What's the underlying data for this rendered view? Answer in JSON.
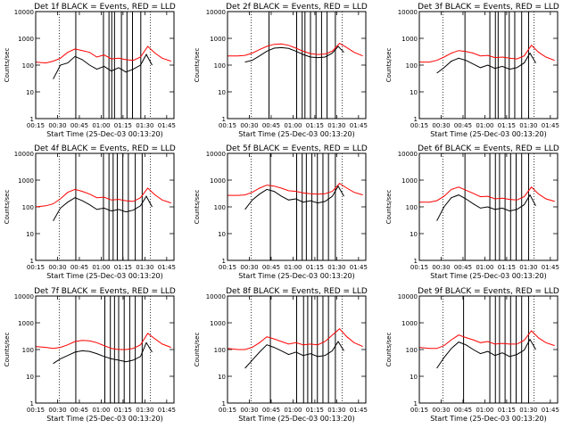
{
  "colors": {
    "events": "#000000",
    "lld": "#ff0000",
    "frame": "#000000"
  },
  "chart_data": [
    {
      "type": "line",
      "title": "Det 1f BLACK = Events, RED = LLD",
      "xlabel": "Start Time (25-Dec-03 00:13:20)",
      "ylabel": "Counts/sec",
      "yscale": "log",
      "ylim": [
        1,
        10000
      ],
      "xlim": [
        "00:15",
        "01:50"
      ],
      "x_ticks": [
        "00:15",
        "00:30",
        "00:45",
        "01:00",
        "01:15",
        "01:30",
        "01:45"
      ],
      "y_ticks": [
        "1",
        "10",
        "100",
        "1000",
        "10000"
      ],
      "series": [
        {
          "name": "Events",
          "x": [
            "00:27",
            "00:32",
            "00:37",
            "00:42",
            "00:47",
            "00:52",
            "00:57",
            "01:02",
            "01:07",
            "01:12",
            "01:17",
            "01:22",
            "01:27",
            "01:31",
            "01:35"
          ],
          "values": [
            30,
            100,
            120,
            210,
            160,
            100,
            70,
            90,
            60,
            80,
            55,
            70,
            100,
            250,
            100
          ]
        },
        {
          "name": "LLD",
          "x": [
            "00:15",
            "00:22",
            "00:27",
            "00:32",
            "00:37",
            "00:42",
            "00:47",
            "00:52",
            "00:57",
            "01:02",
            "01:07",
            "01:12",
            "01:17",
            "01:22",
            "01:27",
            "01:32",
            "01:37",
            "01:42",
            "01:48"
          ],
          "values": [
            130,
            120,
            140,
            180,
            300,
            400,
            350,
            300,
            200,
            240,
            170,
            180,
            160,
            150,
            200,
            500,
            280,
            180,
            140
          ]
        }
      ]
    },
    {
      "type": "line",
      "title": "Det 2f BLACK = Events, RED = LLD",
      "xlabel": "Start Time (25-Dec-03 00:13:20)",
      "ylabel": "Counts/sec",
      "yscale": "log",
      "ylim": [
        1,
        10000
      ],
      "xlim": [
        "00:15",
        "01:50"
      ],
      "x_ticks": [
        "00:15",
        "00:30",
        "00:45",
        "01:00",
        "01:15",
        "01:30",
        "01:45"
      ],
      "y_ticks": [
        "1",
        "10",
        "100",
        "1000",
        "10000"
      ],
      "series": [
        {
          "name": "Events",
          "x": [
            "00:27",
            "00:32",
            "00:37",
            "00:42",
            "00:47",
            "00:52",
            "00:57",
            "01:02",
            "01:07",
            "01:12",
            "01:17",
            "01:22",
            "01:27",
            "01:31",
            "01:35"
          ],
          "values": [
            130,
            150,
            220,
            330,
            430,
            450,
            420,
            330,
            250,
            200,
            190,
            200,
            280,
            500,
            300
          ]
        },
        {
          "name": "LLD",
          "x": [
            "00:15",
            "00:22",
            "00:27",
            "00:32",
            "00:37",
            "00:42",
            "00:47",
            "00:52",
            "00:57",
            "01:02",
            "01:07",
            "01:12",
            "01:17",
            "01:22",
            "01:27",
            "01:32",
            "01:37",
            "01:42",
            "01:48"
          ],
          "values": [
            220,
            220,
            230,
            280,
            380,
            500,
            600,
            620,
            550,
            430,
            330,
            270,
            250,
            260,
            330,
            650,
            450,
            300,
            220
          ]
        }
      ]
    },
    {
      "type": "line",
      "title": "Det 3f BLACK = Events, RED = LLD",
      "xlabel": "Start Time (25-Dec-03 00:13:20)",
      "ylabel": "Counts/sec",
      "yscale": "log",
      "ylim": [
        1,
        10000
      ],
      "xlim": [
        "00:15",
        "01:50"
      ],
      "x_ticks": [
        "00:15",
        "00:30",
        "00:45",
        "01:00",
        "01:15",
        "01:30",
        "01:45"
      ],
      "y_ticks": [
        "1",
        "10",
        "100",
        "1000",
        "10000"
      ],
      "series": [
        {
          "name": "Events",
          "x": [
            "00:27",
            "00:32",
            "00:37",
            "00:42",
            "00:47",
            "00:52",
            "00:57",
            "01:02",
            "01:07",
            "01:12",
            "01:17",
            "01:22",
            "01:27",
            "01:31",
            "01:35"
          ],
          "values": [
            50,
            80,
            140,
            180,
            150,
            110,
            80,
            100,
            75,
            90,
            70,
            80,
            120,
            280,
            120
          ]
        },
        {
          "name": "LLD",
          "x": [
            "00:15",
            "00:22",
            "00:27",
            "00:32",
            "00:37",
            "00:42",
            "00:47",
            "00:52",
            "00:57",
            "01:02",
            "01:07",
            "01:12",
            "01:17",
            "01:22",
            "01:27",
            "01:32",
            "01:37",
            "01:42",
            "01:48"
          ],
          "values": [
            130,
            130,
            150,
            200,
            280,
            350,
            320,
            280,
            220,
            230,
            190,
            200,
            180,
            170,
            220,
            550,
            300,
            200,
            150
          ]
        }
      ]
    },
    {
      "type": "line",
      "title": "Det 4f BLACK = Events, RED = LLD",
      "xlabel": "Start Time (25-Dec-03 00:13:20)",
      "ylabel": "Counts/sec",
      "yscale": "log",
      "ylim": [
        1,
        10000
      ],
      "xlim": [
        "00:15",
        "01:50"
      ],
      "x_ticks": [
        "00:15",
        "00:30",
        "00:45",
        "01:00",
        "01:15",
        "01:30",
        "01:45"
      ],
      "y_ticks": [
        "1",
        "10",
        "100",
        "1000",
        "10000"
      ],
      "series": [
        {
          "name": "Events",
          "x": [
            "00:27",
            "00:32",
            "00:37",
            "00:42",
            "00:47",
            "00:52",
            "00:57",
            "01:02",
            "01:07",
            "01:12",
            "01:17",
            "01:22",
            "01:27",
            "01:31",
            "01:35"
          ],
          "values": [
            30,
            90,
            150,
            220,
            170,
            120,
            80,
            90,
            70,
            80,
            65,
            75,
            110,
            250,
            100
          ]
        },
        {
          "name": "LLD",
          "x": [
            "00:15",
            "00:22",
            "00:27",
            "00:32",
            "00:37",
            "00:42",
            "00:47",
            "00:52",
            "00:57",
            "01:02",
            "01:07",
            "01:12",
            "01:17",
            "01:22",
            "01:27",
            "01:32",
            "01:37",
            "01:42",
            "01:48"
          ],
          "values": [
            100,
            110,
            130,
            200,
            350,
            450,
            380,
            300,
            220,
            230,
            180,
            190,
            170,
            160,
            220,
            500,
            280,
            180,
            140
          ]
        }
      ]
    },
    {
      "type": "line",
      "title": "Det 5f BLACK = Events, RED = LLD",
      "xlabel": "Start Time (25-Dec-03 00:13:20)",
      "ylabel": "Counts/sec",
      "yscale": "log",
      "ylim": [
        1,
        10000
      ],
      "xlim": [
        "00:15",
        "01:50"
      ],
      "x_ticks": [
        "00:15",
        "00:30",
        "00:45",
        "01:00",
        "01:15",
        "01:30",
        "01:45"
      ],
      "y_ticks": [
        "1",
        "10",
        "100",
        "1000",
        "10000"
      ],
      "series": [
        {
          "name": "Events",
          "x": [
            "00:27",
            "00:32",
            "00:37",
            "00:42",
            "00:47",
            "00:52",
            "00:57",
            "01:02",
            "01:07",
            "01:12",
            "01:17",
            "01:22",
            "01:27",
            "01:31",
            "01:35"
          ],
          "values": [
            80,
            180,
            300,
            450,
            380,
            250,
            180,
            200,
            150,
            170,
            140,
            160,
            250,
            600,
            250
          ]
        },
        {
          "name": "LLD",
          "x": [
            "00:15",
            "00:22",
            "00:27",
            "00:32",
            "00:37",
            "00:42",
            "00:47",
            "00:52",
            "00:57",
            "01:02",
            "01:07",
            "01:12",
            "01:17",
            "01:22",
            "01:27",
            "01:32",
            "01:37",
            "01:42",
            "01:48"
          ],
          "values": [
            270,
            270,
            280,
            350,
            500,
            650,
            600,
            500,
            400,
            380,
            330,
            310,
            300,
            310,
            380,
            750,
            500,
            350,
            280
          ]
        }
      ]
    },
    {
      "type": "line",
      "title": "Det 6f BLACK = Events, RED = LLD",
      "xlabel": "Start Time (25-Dec-03 00:13:20)",
      "ylabel": "Counts/sec",
      "yscale": "log",
      "ylim": [
        1,
        10000
      ],
      "xlim": [
        "00:15",
        "01:50"
      ],
      "x_ticks": [
        "00:15",
        "00:30",
        "00:45",
        "01:00",
        "01:15",
        "01:30",
        "01:45"
      ],
      "y_ticks": [
        "1",
        "10",
        "100",
        "1000",
        "10000"
      ],
      "series": [
        {
          "name": "Events",
          "x": [
            "00:27",
            "00:32",
            "00:37",
            "00:42",
            "00:47",
            "00:52",
            "00:57",
            "01:02",
            "01:07",
            "01:12",
            "01:17",
            "01:22",
            "01:27",
            "01:31",
            "01:35"
          ],
          "values": [
            30,
            100,
            220,
            280,
            200,
            130,
            90,
            100,
            80,
            90,
            70,
            80,
            120,
            280,
            110
          ]
        },
        {
          "name": "LLD",
          "x": [
            "00:15",
            "00:22",
            "00:27",
            "00:32",
            "00:37",
            "00:42",
            "00:47",
            "00:52",
            "00:57",
            "01:02",
            "01:07",
            "01:12",
            "01:17",
            "01:22",
            "01:27",
            "01:32",
            "01:37",
            "01:42",
            "01:48"
          ],
          "values": [
            150,
            150,
            170,
            250,
            450,
            550,
            420,
            320,
            240,
            250,
            200,
            210,
            190,
            180,
            240,
            550,
            300,
            200,
            160
          ]
        }
      ]
    },
    {
      "type": "line",
      "title": "Det 7f BLACK = Events, RED = LLD",
      "xlabel": "Start Time (25-Dec-03 00:13:20)",
      "ylabel": "Counts/sec",
      "yscale": "log",
      "ylim": [
        1,
        10000
      ],
      "xlim": [
        "00:15",
        "01:50"
      ],
      "x_ticks": [
        "00:15",
        "00:30",
        "00:45",
        "01:00",
        "01:15",
        "01:30",
        "01:45"
      ],
      "y_ticks": [
        "1",
        "10",
        "100",
        "1000",
        "10000"
      ],
      "series": [
        {
          "name": "Events",
          "x": [
            "00:27",
            "00:32",
            "00:37",
            "00:42",
            "00:47",
            "00:52",
            "00:57",
            "01:02",
            "01:07",
            "01:12",
            "01:17",
            "01:22",
            "01:27",
            "01:31",
            "01:35"
          ],
          "values": [
            30,
            45,
            60,
            80,
            90,
            85,
            70,
            55,
            45,
            40,
            35,
            40,
            55,
            180,
            80
          ]
        },
        {
          "name": "LLD",
          "x": [
            "00:15",
            "00:22",
            "00:27",
            "00:32",
            "00:37",
            "00:42",
            "00:47",
            "00:52",
            "00:57",
            "01:02",
            "01:07",
            "01:12",
            "01:17",
            "01:22",
            "01:27",
            "01:32",
            "01:37",
            "01:42",
            "01:48"
          ],
          "values": [
            130,
            120,
            110,
            120,
            150,
            200,
            220,
            210,
            180,
            140,
            110,
            100,
            100,
            110,
            150,
            400,
            250,
            160,
            120
          ]
        }
      ]
    },
    {
      "type": "line",
      "title": "Det 8f BLACK = Events, RED = LLD",
      "xlabel": "Start Time (25-Dec-03 00:13:20)",
      "ylabel": "Counts/sec",
      "yscale": "log",
      "ylim": [
        1,
        10000
      ],
      "xlim": [
        "00:15",
        "01:50"
      ],
      "x_ticks": [
        "00:15",
        "00:30",
        "00:45",
        "01:00",
        "01:15",
        "01:30",
        "01:45"
      ],
      "y_ticks": [
        "1",
        "10",
        "100",
        "1000",
        "10000"
      ],
      "series": [
        {
          "name": "Events",
          "x": [
            "00:27",
            "00:32",
            "00:37",
            "00:42",
            "00:47",
            "00:52",
            "00:57",
            "01:02",
            "01:07",
            "01:12",
            "01:17",
            "01:22",
            "01:27",
            "01:31",
            "01:35"
          ],
          "values": [
            20,
            40,
            80,
            150,
            120,
            90,
            65,
            80,
            60,
            70,
            55,
            60,
            90,
            200,
            90
          ]
        },
        {
          "name": "LLD",
          "x": [
            "00:15",
            "00:22",
            "00:27",
            "00:32",
            "00:37",
            "00:42",
            "00:47",
            "00:52",
            "00:57",
            "01:02",
            "01:07",
            "01:12",
            "01:17",
            "01:22",
            "01:27",
            "01:32",
            "01:37",
            "01:42",
            "01:48"
          ],
          "values": [
            110,
            100,
            100,
            120,
            180,
            300,
            250,
            200,
            160,
            180,
            150,
            160,
            150,
            200,
            350,
            600,
            300,
            180,
            130
          ]
        }
      ]
    },
    {
      "type": "line",
      "title": "Det 9f BLACK = Events, RED = LLD",
      "xlabel": "Start Time (25-Dec-03 00:13:20)",
      "ylabel": "Counts/sec",
      "yscale": "log",
      "ylim": [
        1,
        10000
      ],
      "xlim": [
        "00:15",
        "01:50"
      ],
      "x_ticks": [
        "00:15",
        "00:30",
        "00:45",
        "01:00",
        "01:15",
        "01:30",
        "01:45"
      ],
      "y_ticks": [
        "1",
        "10",
        "100",
        "1000",
        "10000"
      ],
      "series": [
        {
          "name": "Events",
          "x": [
            "00:27",
            "00:32",
            "00:37",
            "00:42",
            "00:47",
            "00:52",
            "00:57",
            "01:02",
            "01:07",
            "01:12",
            "01:17",
            "01:22",
            "01:27",
            "01:31",
            "01:35"
          ],
          "values": [
            20,
            50,
            110,
            190,
            150,
            100,
            70,
            85,
            60,
            75,
            55,
            65,
            95,
            240,
            100
          ]
        },
        {
          "name": "LLD",
          "x": [
            "00:15",
            "00:22",
            "00:27",
            "00:32",
            "00:37",
            "00:42",
            "00:47",
            "00:52",
            "00:57",
            "01:02",
            "01:07",
            "01:12",
            "01:17",
            "01:22",
            "01:27",
            "01:32",
            "01:37",
            "01:42",
            "01:48"
          ],
          "values": [
            120,
            110,
            110,
            140,
            230,
            350,
            280,
            230,
            180,
            200,
            160,
            170,
            160,
            160,
            220,
            500,
            270,
            180,
            140
          ]
        }
      ]
    }
  ]
}
